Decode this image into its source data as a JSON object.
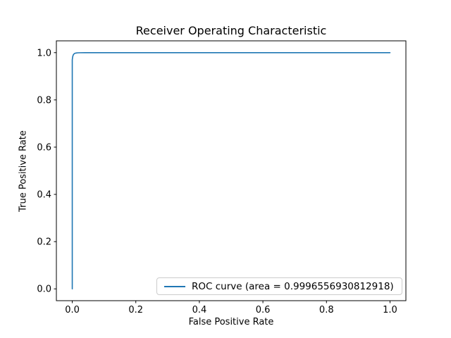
{
  "window": {
    "background": "#ffffff"
  },
  "chart_data": {
    "type": "line",
    "title": "Receiver Operating Characteristic",
    "xlabel": "False Positive Rate",
    "ylabel": "True Positive Rate",
    "xlim": [
      -0.05,
      1.05
    ],
    "ylim": [
      -0.05,
      1.05
    ],
    "xticks": [
      0.0,
      0.2,
      0.4,
      0.6,
      0.8,
      1.0
    ],
    "yticks": [
      0.0,
      0.2,
      0.4,
      0.6,
      0.8,
      1.0
    ],
    "grid": false,
    "axis_color": "#000000",
    "legend": {
      "position": "lower right",
      "border_color": "#cccccc",
      "entries": [
        {
          "label": "ROC curve (area = 0.9996556930812918)",
          "color": "#1f77b4"
        }
      ]
    },
    "series": [
      {
        "name": "ROC curve (area = 0.9996556930812918)",
        "color": "#1f77b4",
        "auc": 0.9996556930812918,
        "x": [
          0.0,
          0.0,
          0.001,
          0.002,
          0.003,
          0.005,
          0.008,
          0.012,
          0.017,
          0.025,
          0.04,
          0.1,
          1.0
        ],
        "y": [
          0.0,
          0.97,
          0.98,
          0.986,
          0.99,
          0.994,
          0.997,
          0.9985,
          0.9993,
          0.9997,
          0.9999,
          1.0,
          1.0
        ]
      }
    ]
  }
}
